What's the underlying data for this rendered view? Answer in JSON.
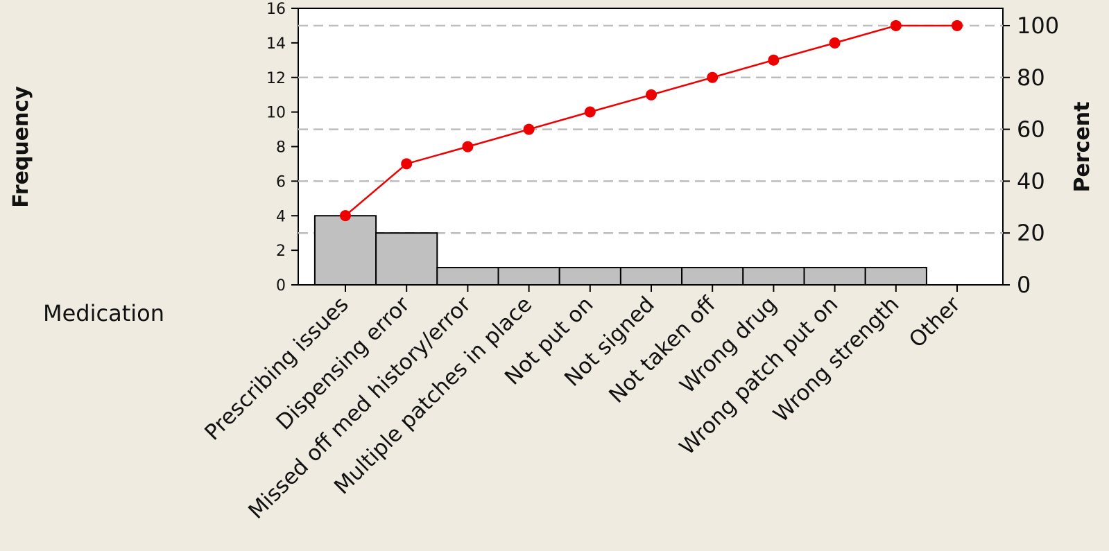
{
  "chart_data": {
    "type": "bar",
    "subtype": "pareto",
    "categories": [
      "Prescribing issues",
      "Dispensing error",
      "Missed off med history/error",
      "Multiple patches in place",
      "Not put on",
      "Not signed",
      "Not taken off",
      "Wrong drug",
      "Wrong patch put on",
      "Wrong strength",
      "Other"
    ],
    "series": [
      {
        "type": "bar",
        "values": [
          4,
          3,
          1,
          1,
          1,
          1,
          1,
          1,
          1,
          1,
          0
        ],
        "color": "#c0c0c0"
      },
      {
        "type": "line",
        "axis": "right",
        "values": [
          26.7,
          46.7,
          53.3,
          60.0,
          66.7,
          73.3,
          80.0,
          86.7,
          93.3,
          100.0,
          100.0
        ],
        "color": "#ee0000"
      }
    ],
    "category_axis_label": "Medication",
    "ylabel": "Frequency",
    "y2label": "Percent",
    "ylim": [
      0,
      16
    ],
    "y2lim": [
      0,
      106.67
    ],
    "yticks": [
      "0",
      "2",
      "4",
      "6",
      "8",
      "10",
      "12",
      "14",
      "16"
    ],
    "y2ticks": [
      "0",
      "20",
      "40",
      "60",
      "80",
      "100"
    ],
    "grid": "dashed horizontal at right-axis ticks"
  }
}
